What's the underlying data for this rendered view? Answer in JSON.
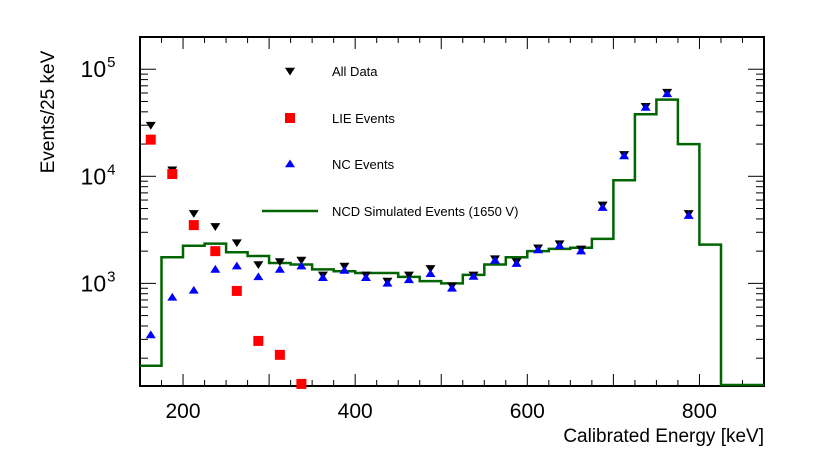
{
  "chart_data": {
    "type": "scatter",
    "title": "",
    "xlabel": "Calibrated Energy [keV]",
    "ylabel": "Events/25 keV",
    "xlim": [
      150,
      875
    ],
    "ylim": [
      110,
      200000
    ],
    "yscale": "log",
    "grid": false,
    "legend_position": "top-center",
    "x_ticks": [
      200,
      400,
      600,
      800
    ],
    "x_tick_labels": [
      "200",
      "400",
      "600",
      "800"
    ],
    "y_ticks": [
      1000,
      10000,
      100000
    ],
    "y_tick_label_base": "10",
    "y_tick_label_exponents": [
      "3",
      "4",
      "5"
    ],
    "series": [
      {
        "name": "All Data",
        "marker": "triangle-down",
        "color": "#000000",
        "x": [
          162.5,
          187.5,
          212.5,
          237.5,
          262.5,
          287.5,
          312.5,
          337.5,
          362.5,
          387.5,
          412.5,
          437.5,
          462.5,
          487.5,
          512.5,
          537.5,
          562.5,
          587.5,
          612.5,
          637.5,
          662.5,
          687.5,
          712.5,
          737.5,
          762.5,
          787.5
        ],
        "y": [
          30000,
          11500,
          4500,
          3400,
          2400,
          1500,
          1600,
          1650,
          1200,
          1450,
          1200,
          1050,
          1200,
          1380,
          950,
          1200,
          1700,
          1600,
          2150,
          2350,
          2100,
          5400,
          16000,
          45000,
          61000,
          4500
        ]
      },
      {
        "name": "LIE Events",
        "marker": "square",
        "color": "#ff0000",
        "x": [
          162.5,
          187.5,
          212.5,
          237.5,
          262.5,
          287.5,
          312.5,
          337.5
        ],
        "y": [
          22000,
          10500,
          3500,
          2000,
          850,
          290,
          215,
          115
        ]
      },
      {
        "name": "NC Events",
        "marker": "triangle-up",
        "color": "#0000ff",
        "x": [
          162.5,
          187.5,
          212.5,
          237.5,
          262.5,
          287.5,
          312.5,
          337.5,
          362.5,
          387.5,
          412.5,
          437.5,
          462.5,
          487.5,
          512.5,
          537.5,
          562.5,
          587.5,
          612.5,
          637.5,
          662.5,
          687.5,
          712.5,
          737.5,
          762.5,
          787.5
        ],
        "y": [
          330,
          740,
          860,
          1350,
          1450,
          1150,
          1350,
          1450,
          1130,
          1320,
          1130,
          1000,
          1080,
          1230,
          900,
          1160,
          1640,
          1530,
          2050,
          2250,
          2000,
          5100,
          15500,
          44000,
          59000,
          4300
        ]
      },
      {
        "name": "NCD Simulated Events (1650 V)",
        "type": "step",
        "color": "#006400",
        "x_edges": [
          150,
          175,
          200,
          225,
          250,
          275,
          300,
          325,
          350,
          375,
          400,
          425,
          450,
          475,
          500,
          525,
          550,
          575,
          600,
          625,
          650,
          675,
          700,
          725,
          750,
          775,
          800,
          825,
          850,
          875
        ],
        "y": [
          170,
          1750,
          2250,
          2350,
          1950,
          1800,
          1550,
          1500,
          1350,
          1300,
          1250,
          1250,
          1150,
          1050,
          1000,
          1200,
          1500,
          1750,
          2000,
          2100,
          2150,
          2600,
          9200,
          38000,
          52000,
          20000,
          2300,
          105,
          105
        ]
      }
    ]
  }
}
